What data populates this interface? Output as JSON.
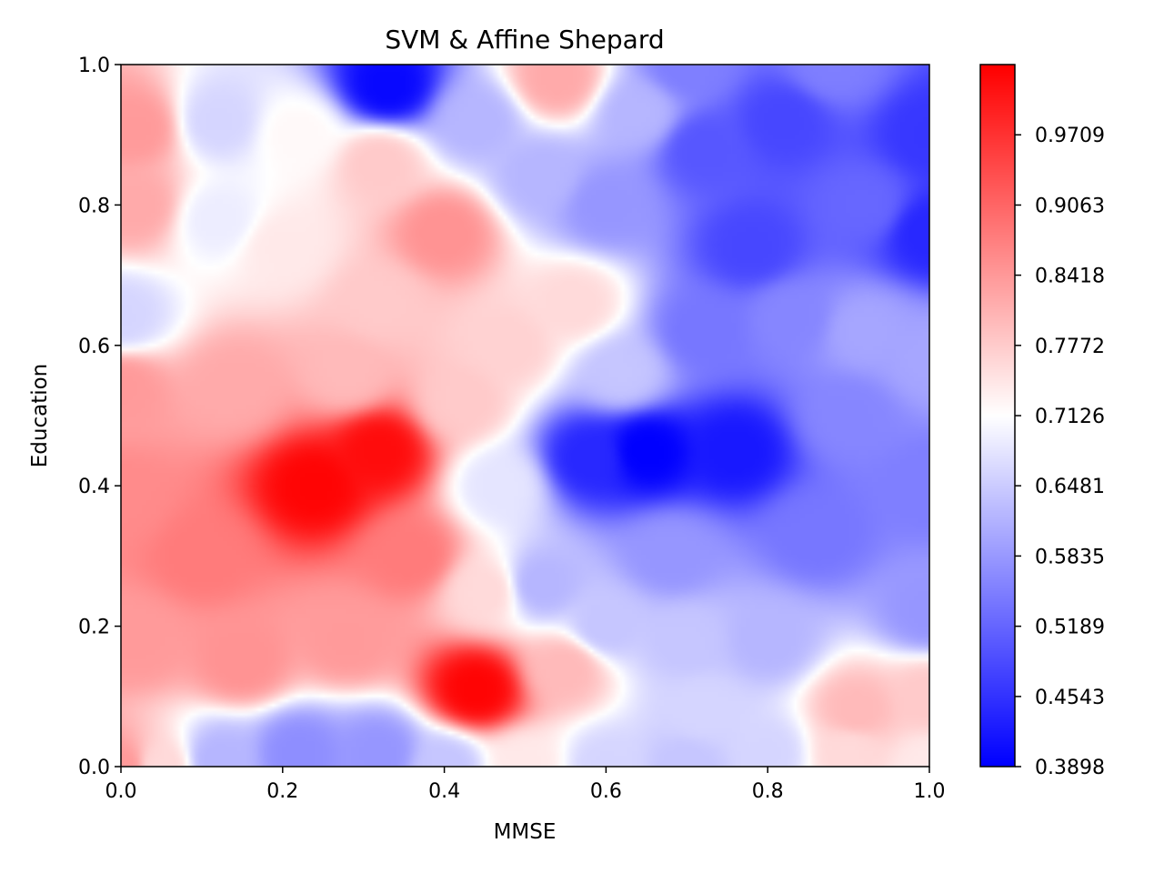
{
  "chart_data": {
    "type": "heatmap",
    "title": "SVM & Affine Shepard",
    "xlabel": "MMSE",
    "ylabel": "Education",
    "xlim": [
      0.0,
      1.0
    ],
    "ylim": [
      0.0,
      1.0
    ],
    "xticks": [
      "0.0",
      "0.2",
      "0.4",
      "0.6",
      "0.8",
      "1.0"
    ],
    "yticks": [
      "0.0",
      "0.2",
      "0.4",
      "0.6",
      "0.8",
      "1.0"
    ],
    "colormap": "bwr",
    "colorbar": {
      "min": 0.3898,
      "max": 1.0355,
      "ticks": [
        "0.3898",
        "0.4543",
        "0.5189",
        "0.5835",
        "0.6481",
        "0.7126",
        "0.7772",
        "0.8418",
        "0.9063",
        "0.9709"
      ]
    },
    "grid": false,
    "points": [
      {
        "x": 0.0,
        "y": 0.0,
        "v": 0.84
      },
      {
        "x": 0.05,
        "y": 0.0,
        "v": 0.76
      },
      {
        "x": 0.12,
        "y": 0.01,
        "v": 0.62
      },
      {
        "x": 0.22,
        "y": 0.02,
        "v": 0.57
      },
      {
        "x": 0.32,
        "y": 0.02,
        "v": 0.58
      },
      {
        "x": 0.4,
        "y": 0.0,
        "v": 0.64
      },
      {
        "x": 0.5,
        "y": 0.0,
        "v": 0.74
      },
      {
        "x": 0.6,
        "y": 0.0,
        "v": 0.66
      },
      {
        "x": 0.7,
        "y": 0.0,
        "v": 0.64
      },
      {
        "x": 0.8,
        "y": 0.02,
        "v": 0.66
      },
      {
        "x": 0.9,
        "y": 0.02,
        "v": 0.76
      },
      {
        "x": 1.0,
        "y": 0.0,
        "v": 0.74
      },
      {
        "x": 0.02,
        "y": 0.18,
        "v": 0.84
      },
      {
        "x": 0.15,
        "y": 0.15,
        "v": 0.85
      },
      {
        "x": 0.28,
        "y": 0.18,
        "v": 0.84
      },
      {
        "x": 0.44,
        "y": 0.11,
        "v": 1.03
      },
      {
        "x": 0.55,
        "y": 0.14,
        "v": 0.8
      },
      {
        "x": 0.6,
        "y": 0.2,
        "v": 0.64
      },
      {
        "x": 0.7,
        "y": 0.18,
        "v": 0.64
      },
      {
        "x": 0.72,
        "y": 0.08,
        "v": 0.66
      },
      {
        "x": 0.8,
        "y": 0.18,
        "v": 0.62
      },
      {
        "x": 0.91,
        "y": 0.08,
        "v": 0.8
      },
      {
        "x": 1.0,
        "y": 0.1,
        "v": 0.78
      },
      {
        "x": 1.0,
        "y": 0.22,
        "v": 0.58
      },
      {
        "x": 0.0,
        "y": 0.38,
        "v": 0.86
      },
      {
        "x": 0.1,
        "y": 0.3,
        "v": 0.88
      },
      {
        "x": 0.24,
        "y": 0.4,
        "v": 1.03
      },
      {
        "x": 0.32,
        "y": 0.45,
        "v": 1.02
      },
      {
        "x": 0.36,
        "y": 0.3,
        "v": 0.88
      },
      {
        "x": 0.45,
        "y": 0.25,
        "v": 0.76
      },
      {
        "x": 0.47,
        "y": 0.4,
        "v": 0.68
      },
      {
        "x": 0.52,
        "y": 0.26,
        "v": 0.62
      },
      {
        "x": 0.58,
        "y": 0.44,
        "v": 0.44
      },
      {
        "x": 0.65,
        "y": 0.45,
        "v": 0.39
      },
      {
        "x": 0.76,
        "y": 0.45,
        "v": 0.42
      },
      {
        "x": 0.68,
        "y": 0.3,
        "v": 0.58
      },
      {
        "x": 0.86,
        "y": 0.33,
        "v": 0.54
      },
      {
        "x": 1.0,
        "y": 0.4,
        "v": 0.55
      },
      {
        "x": 0.9,
        "y": 0.5,
        "v": 0.56
      },
      {
        "x": 0.0,
        "y": 0.54,
        "v": 0.84
      },
      {
        "x": 0.0,
        "y": 0.64,
        "v": 0.66
      },
      {
        "x": 0.14,
        "y": 0.54,
        "v": 0.82
      },
      {
        "x": 0.28,
        "y": 0.56,
        "v": 0.8
      },
      {
        "x": 0.32,
        "y": 0.66,
        "v": 0.78
      },
      {
        "x": 0.42,
        "y": 0.52,
        "v": 0.78
      },
      {
        "x": 0.48,
        "y": 0.6,
        "v": 0.77
      },
      {
        "x": 0.56,
        "y": 0.66,
        "v": 0.76
      },
      {
        "x": 0.62,
        "y": 0.56,
        "v": 0.64
      },
      {
        "x": 0.72,
        "y": 0.62,
        "v": 0.54
      },
      {
        "x": 0.83,
        "y": 0.64,
        "v": 0.56
      },
      {
        "x": 0.92,
        "y": 0.62,
        "v": 0.6
      },
      {
        "x": 1.0,
        "y": 0.58,
        "v": 0.6
      },
      {
        "x": 0.02,
        "y": 0.8,
        "v": 0.82
      },
      {
        "x": 0.02,
        "y": 0.91,
        "v": 0.84
      },
      {
        "x": 0.12,
        "y": 0.78,
        "v": 0.69
      },
      {
        "x": 0.12,
        "y": 0.92,
        "v": 0.66
      },
      {
        "x": 0.2,
        "y": 0.74,
        "v": 0.74
      },
      {
        "x": 0.22,
        "y": 0.9,
        "v": 0.72
      },
      {
        "x": 0.32,
        "y": 0.86,
        "v": 0.78
      },
      {
        "x": 0.33,
        "y": 0.97,
        "v": 0.4
      },
      {
        "x": 0.4,
        "y": 0.76,
        "v": 0.85
      },
      {
        "x": 0.44,
        "y": 0.92,
        "v": 0.62
      },
      {
        "x": 0.52,
        "y": 0.84,
        "v": 0.62
      },
      {
        "x": 0.54,
        "y": 0.98,
        "v": 0.82
      },
      {
        "x": 0.6,
        "y": 0.8,
        "v": 0.58
      },
      {
        "x": 0.64,
        "y": 0.93,
        "v": 0.62
      },
      {
        "x": 0.72,
        "y": 0.88,
        "v": 0.5
      },
      {
        "x": 0.78,
        "y": 0.74,
        "v": 0.48
      },
      {
        "x": 0.82,
        "y": 0.92,
        "v": 0.48
      },
      {
        "x": 0.92,
        "y": 0.8,
        "v": 0.52
      },
      {
        "x": 1.0,
        "y": 0.76,
        "v": 0.44
      },
      {
        "x": 1.0,
        "y": 0.9,
        "v": 0.46
      },
      {
        "x": 0.88,
        "y": 1.0,
        "v": 0.55
      },
      {
        "x": 0.7,
        "y": 1.0,
        "v": 0.55
      }
    ]
  }
}
